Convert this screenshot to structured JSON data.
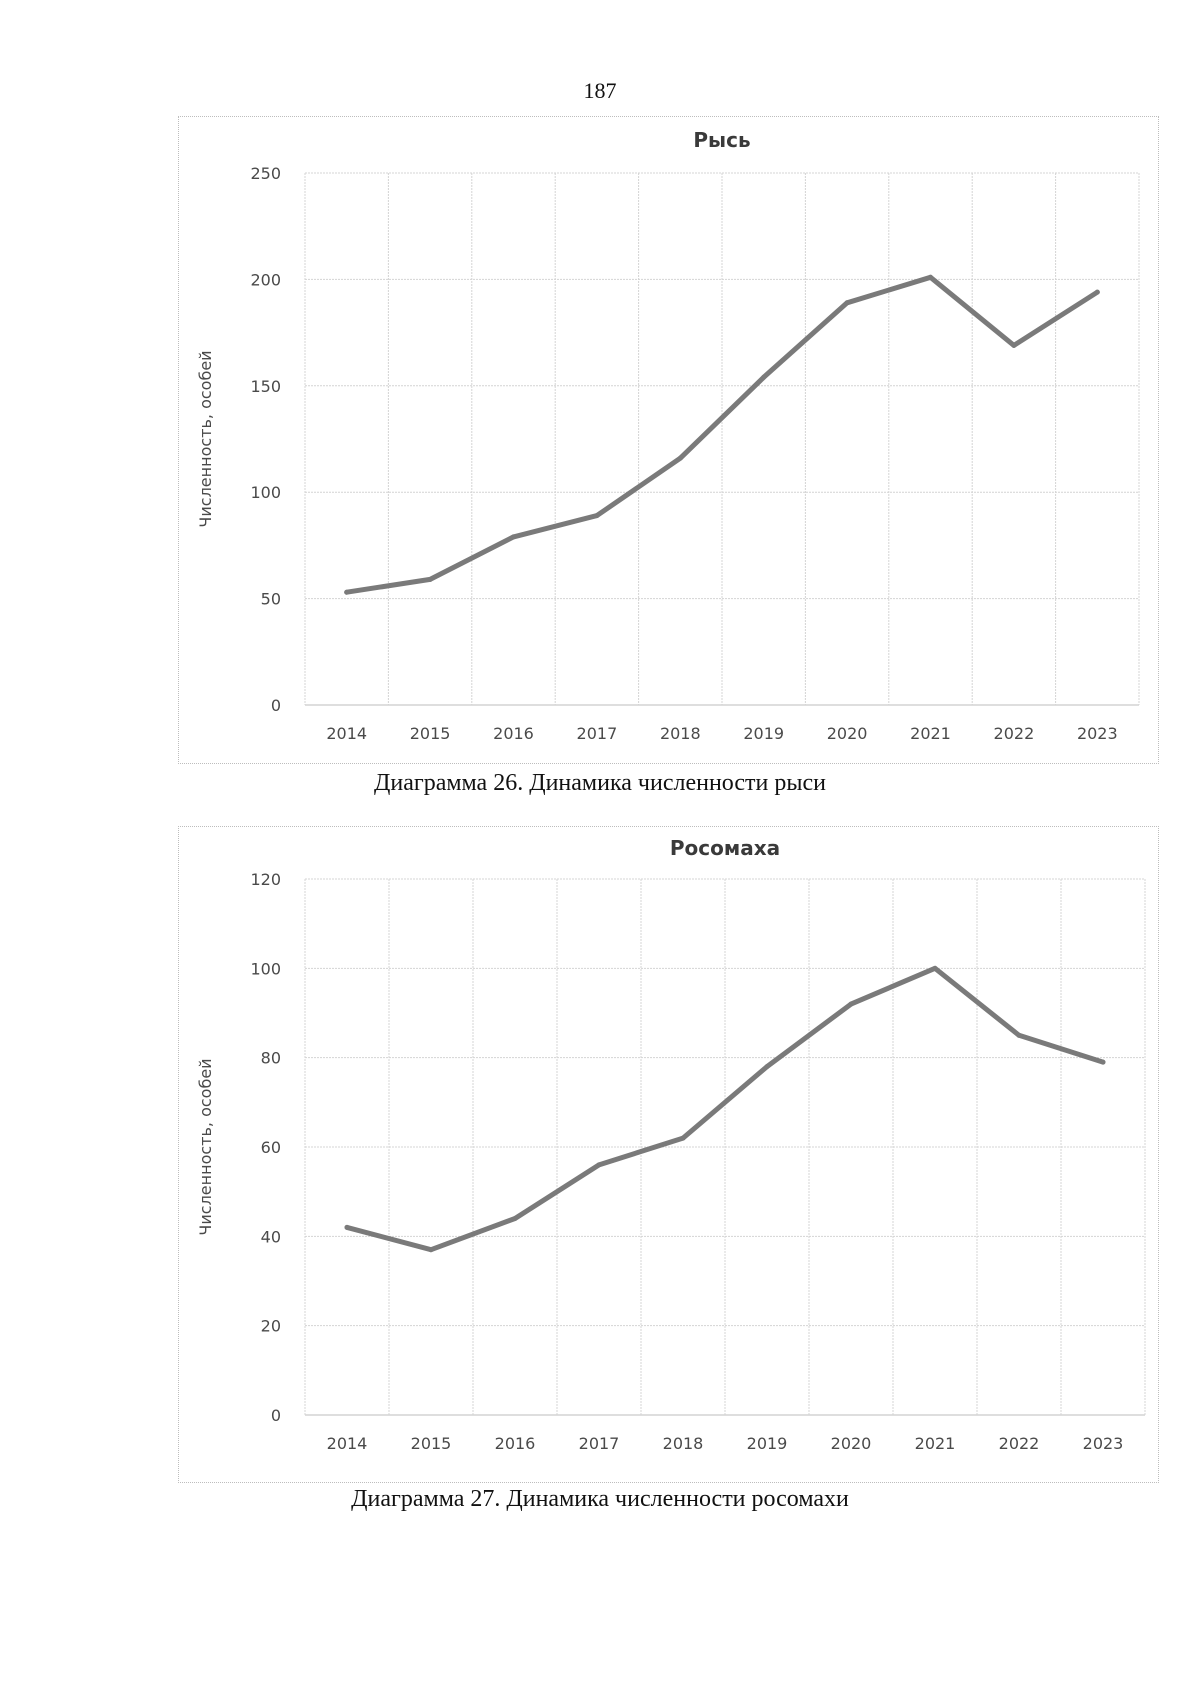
{
  "page": {
    "number": "187"
  },
  "chart_data": [
    {
      "type": "line",
      "title": "Рысь",
      "caption": "Диаграмма 26. Динамика численности рыси",
      "xlabel": "",
      "ylabel": "Численность, особей",
      "categories": [
        "2014",
        "2015",
        "2016",
        "2017",
        "2018",
        "2019",
        "2020",
        "2021",
        "2022",
        "2023"
      ],
      "values": [
        53,
        59,
        79,
        89,
        116,
        154,
        189,
        201,
        169,
        194
      ],
      "ylim": [
        0,
        250
      ],
      "yticks": [
        0,
        50,
        100,
        150,
        200,
        250
      ],
      "grid": true,
      "line_color": "#7a7a7a"
    },
    {
      "type": "line",
      "title": "Росомаха",
      "caption": "Диаграмма 27. Динамика численности росомахи",
      "xlabel": "",
      "ylabel": "Численность, особей",
      "categories": [
        "2014",
        "2015",
        "2016",
        "2017",
        "2018",
        "2019",
        "2020",
        "2021",
        "2022",
        "2023"
      ],
      "values": [
        42,
        37,
        44,
        56,
        62,
        78,
        92,
        100,
        85,
        79
      ],
      "ylim": [
        0,
        120
      ],
      "yticks": [
        0,
        20,
        40,
        60,
        80,
        100,
        120
      ],
      "grid": true,
      "line_color": "#7a7a7a"
    }
  ]
}
